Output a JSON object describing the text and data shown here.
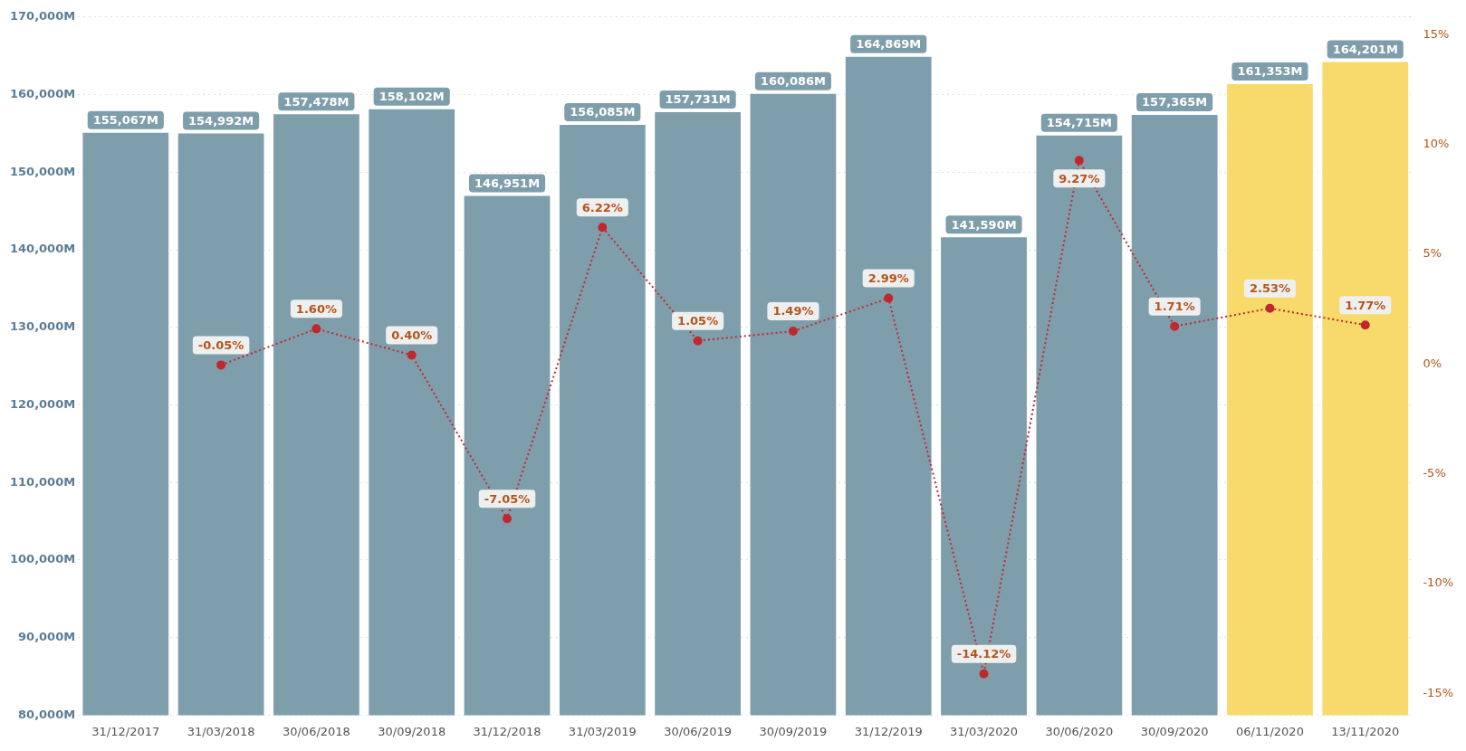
{
  "chart_data": {
    "type": "bar",
    "categories": [
      "31/12/2017",
      "31/03/2018",
      "30/06/2018",
      "30/09/2018",
      "31/12/2018",
      "31/03/2019",
      "30/06/2019",
      "30/09/2019",
      "31/12/2019",
      "31/03/2020",
      "30/06/2020",
      "30/09/2020",
      "06/11/2020",
      "13/11/2020"
    ],
    "series": [
      {
        "colors": [
          "#7f9eab",
          "#7f9eab",
          "#7f9eab",
          "#7f9eab",
          "#7f9eab",
          "#7f9eab",
          "#7f9eab",
          "#7f9eab",
          "#7f9eab",
          "#7f9eab",
          "#7f9eab",
          "#7f9eab",
          "#f7da6b",
          "#f7da6b"
        ],
        "values": [
          155067,
          154992,
          157478,
          158102,
          146951,
          156085,
          157731,
          160086,
          164869,
          141590,
          154715,
          157365,
          161353,
          164201
        ],
        "value_labels": [
          "155,067M",
          "154,992M",
          "157,478M",
          "158,102M",
          "146,951M",
          "156,085M",
          "157,731M",
          "160,086M",
          "164,869M",
          "141,590M",
          "154,715M",
          "157,365M",
          "161,353M",
          "164,201M"
        ]
      },
      {
        "type": "line",
        "axis": "y2",
        "color": "#c0282d",
        "marker": "circle",
        "line_style": "dotted",
        "values": [
          null,
          -0.05,
          1.6,
          0.4,
          -7.05,
          6.22,
          1.05,
          1.49,
          2.99,
          -14.12,
          9.27,
          1.71,
          2.53,
          1.77
        ],
        "value_labels": [
          null,
          "-0.05%",
          "1.60%",
          "0.40%",
          "-7.05%",
          "6.22%",
          "1.05%",
          "1.49%",
          "2.99%",
          "-14.12%",
          "9.27%",
          "1.71%",
          "2.53%",
          "1.77%"
        ]
      }
    ],
    "ylim": [
      80000,
      170000
    ],
    "yticks": [
      {
        "value": 80000,
        "label": "80,000M"
      },
      {
        "value": 90000,
        "label": "90,000M"
      },
      {
        "value": 100000,
        "label": "100,000M"
      },
      {
        "value": 110000,
        "label": "110,000M"
      },
      {
        "value": 120000,
        "label": "120,000M"
      },
      {
        "value": 130000,
        "label": "130,000M"
      },
      {
        "value": 140000,
        "label": "140,000M"
      },
      {
        "value": 150000,
        "label": "150,000M"
      },
      {
        "value": 160000,
        "label": "160,000M"
      },
      {
        "value": 170000,
        "label": "170,000M"
      }
    ],
    "y2lim": [
      -16,
      15.8
    ],
    "y2ticks": [
      {
        "value": -15,
        "label": "-15%"
      },
      {
        "value": -10,
        "label": "-10%"
      },
      {
        "value": -5,
        "label": "-5%"
      },
      {
        "value": 0,
        "label": "0%"
      },
      {
        "value": 5,
        "label": "5%"
      },
      {
        "value": 10,
        "label": "10%"
      },
      {
        "value": 15,
        "label": "15%"
      }
    ],
    "grid": "y",
    "legend": false
  }
}
